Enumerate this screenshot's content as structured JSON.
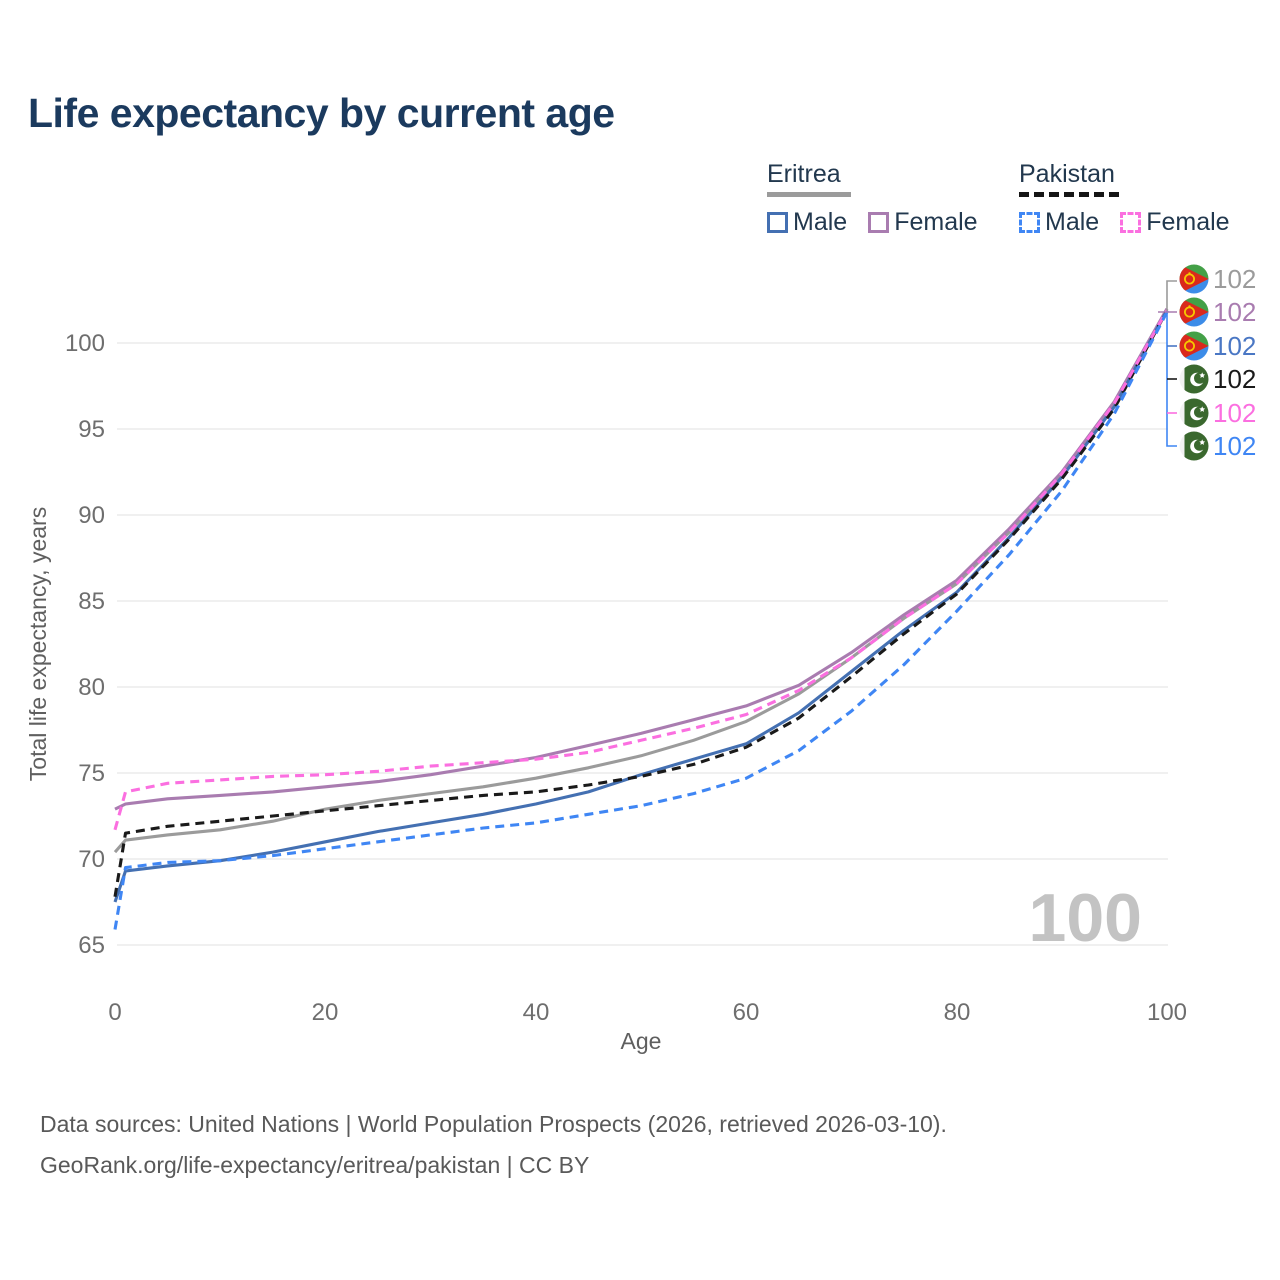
{
  "title": "Life expectancy by current age",
  "legend": {
    "eritrea": {
      "name": "Eritrea",
      "male_label": "Male",
      "female_label": "Female"
    },
    "pakistan": {
      "name": "Pakistan",
      "male_label": "Male",
      "female_label": "Female"
    }
  },
  "colors": {
    "eritrea_total": "#9b9b9b",
    "eritrea_female": "#a97cb0",
    "eritrea_male": "#4470b2",
    "pakistan_total": "#1a1a1a",
    "pakistan_female": "#fb6fe0",
    "pakistan_male": "#3f86f4",
    "title_navy": "#1b3a5e",
    "gridline": "#ebebeb",
    "watermark_gray": "#c3c3c3"
  },
  "watermark": "100",
  "endpoint_labels": [
    {
      "country": "Eritrea",
      "series": "Total",
      "value": "102",
      "color": "#9b9b9b"
    },
    {
      "country": "Eritrea",
      "series": "Female",
      "value": "102",
      "color": "#a97cb0"
    },
    {
      "country": "Eritrea",
      "series": "Male",
      "value": "102",
      "color": "#4a77c4"
    },
    {
      "country": "Pakistan",
      "series": "Total",
      "value": "102",
      "color": "#1a1a1a"
    },
    {
      "country": "Pakistan",
      "series": "Female",
      "value": "102",
      "color": "#fb6fe0"
    },
    {
      "country": "Pakistan",
      "series": "Male",
      "value": "102",
      "color": "#3f86f4"
    }
  ],
  "footer": {
    "line1": "Data sources: United Nations | World Population Prospects (2026, retrieved 2026-03-10).",
    "line2": "GeoRank.org/life-expectancy/eritrea/pakistan | CC BY"
  },
  "chart_data": {
    "type": "line",
    "title": "Life expectancy by current age",
    "xlabel": "Age",
    "ylabel": "Total life expectancy, years",
    "xlim": [
      0,
      100
    ],
    "ylim": [
      65,
      102
    ],
    "x_ticks": [
      0,
      20,
      40,
      60,
      80,
      100
    ],
    "y_ticks": [
      100,
      95,
      90,
      85,
      80,
      75,
      70,
      65
    ],
    "grid": "horizontal-only",
    "legend_position": "top-right",
    "x": [
      0,
      1,
      5,
      10,
      15,
      20,
      25,
      30,
      35,
      40,
      45,
      50,
      55,
      60,
      65,
      70,
      75,
      80,
      85,
      90,
      95,
      100
    ],
    "series": [
      {
        "name": "Eritrea Total",
        "color": "#9b9b9b",
        "dash": false,
        "values": [
          70.4,
          71.1,
          71.4,
          71.7,
          72.2,
          72.9,
          73.4,
          73.8,
          74.2,
          74.7,
          75.3,
          76.0,
          76.9,
          78.0,
          79.6,
          81.7,
          84.0,
          86.0,
          89.0,
          92.4,
          96.5,
          101.9
        ]
      },
      {
        "name": "Eritrea Female",
        "color": "#a97cb0",
        "dash": false,
        "values": [
          72.9,
          73.2,
          73.5,
          73.7,
          73.9,
          74.2,
          74.5,
          74.9,
          75.4,
          75.9,
          76.6,
          77.3,
          78.1,
          78.9,
          80.1,
          82.0,
          84.2,
          86.2,
          89.2,
          92.5,
          96.6,
          102.0
        ]
      },
      {
        "name": "Eritrea Male",
        "color": "#4470b2",
        "dash": false,
        "values": [
          67.5,
          69.3,
          69.6,
          69.9,
          70.4,
          71.0,
          71.6,
          72.1,
          72.6,
          73.2,
          73.9,
          74.9,
          75.8,
          76.7,
          78.5,
          80.9,
          83.3,
          85.5,
          88.7,
          92.2,
          96.3,
          101.9
        ]
      },
      {
        "name": "Pakistan Total",
        "color": "#1a1a1a",
        "dash": true,
        "values": [
          67.8,
          71.5,
          71.9,
          72.2,
          72.5,
          72.8,
          73.1,
          73.4,
          73.7,
          73.9,
          74.3,
          74.8,
          75.5,
          76.5,
          78.2,
          80.6,
          83.1,
          85.4,
          88.6,
          92.1,
          96.2,
          101.9
        ]
      },
      {
        "name": "Pakistan Female",
        "color": "#fb6fe0",
        "dash": true,
        "values": [
          71.7,
          73.9,
          74.4,
          74.6,
          74.8,
          74.9,
          75.1,
          75.4,
          75.6,
          75.8,
          76.2,
          76.9,
          77.6,
          78.4,
          79.8,
          81.7,
          84.0,
          86.0,
          89.0,
          92.4,
          96.5,
          101.9
        ]
      },
      {
        "name": "Pakistan Male",
        "color": "#3f86f4",
        "dash": true,
        "values": [
          65.9,
          69.5,
          69.8,
          69.9,
          70.2,
          70.6,
          71.0,
          71.4,
          71.8,
          72.1,
          72.6,
          73.1,
          73.8,
          74.7,
          76.3,
          78.6,
          81.3,
          84.4,
          87.7,
          91.4,
          95.9,
          101.8
        ]
      }
    ]
  }
}
